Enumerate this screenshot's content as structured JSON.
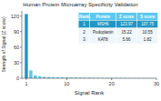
{
  "chart_data": {
    "type": "bar",
    "title": "Human Protein Microarray Specificity Validation",
    "xlabel": "Signal Rank",
    "ylabel": "Strength of Signal (Z score)",
    "x": [
      1,
      2,
      3,
      4,
      5,
      6,
      7,
      8,
      9,
      10,
      11,
      12,
      13,
      14,
      15,
      16,
      17,
      18,
      19,
      20,
      21,
      22,
      23,
      24,
      25,
      26,
      27,
      28,
      29,
      30
    ],
    "values": [
      123.97,
      15.22,
      5.66,
      3.84,
      2.91,
      2.45,
      2.12,
      1.95,
      1.78,
      1.62,
      1.48,
      1.35,
      1.22,
      1.12,
      1.02,
      0.95,
      0.88,
      0.82,
      0.76,
      0.7,
      0.65,
      0.6,
      0.56,
      0.52,
      0.48,
      0.44,
      0.4,
      0.36,
      0.32,
      0.28
    ],
    "colors": [
      "#2196c4",
      "#5bc8f0",
      "#5bc8f0",
      "#5bc8f0",
      "#5bc8f0",
      "#5bc8f0",
      "#5bc8f0",
      "#5bc8f0",
      "#5bc8f0",
      "#5bc8f0",
      "#5bc8f0",
      "#5bc8f0",
      "#5bc8f0",
      "#5bc8f0",
      "#5bc8f0",
      "#5bc8f0",
      "#5bc8f0",
      "#5bc8f0",
      "#5bc8f0",
      "#5bc8f0",
      "#5bc8f0",
      "#5bc8f0",
      "#5bc8f0",
      "#5bc8f0",
      "#5bc8f0",
      "#5bc8f0",
      "#5bc8f0",
      "#5bc8f0",
      "#5bc8f0",
      "#5bc8f0"
    ],
    "xlim": [
      0,
      30
    ],
    "ylim": [
      0,
      130
    ],
    "xticks": [
      1,
      10,
      20,
      30
    ],
    "yticks": [
      0,
      30,
      60,
      90,
      120
    ],
    "table": {
      "headers": [
        "Rank",
        "Protein",
        "Z score",
        "S score"
      ],
      "rows": [
        [
          "1",
          "MSH6",
          "123.97",
          "107.75"
        ],
        [
          "2",
          "Podoplanin",
          "15.22",
          "10.55"
        ],
        [
          "3",
          "KAT8",
          "5.66",
          "1.82"
        ]
      ]
    }
  }
}
